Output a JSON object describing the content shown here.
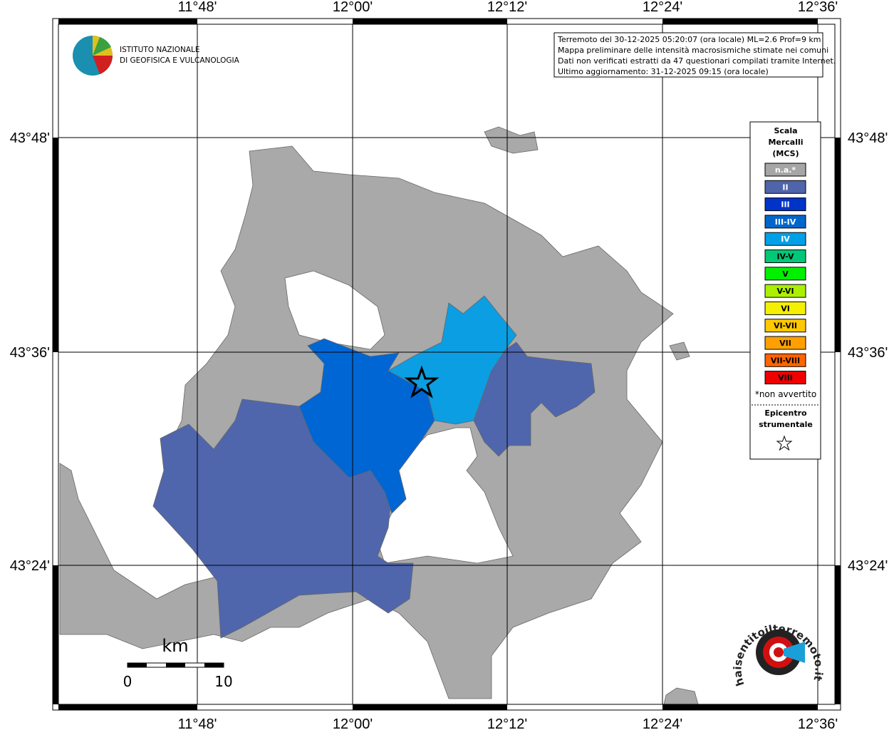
{
  "map": {
    "lon_labels": [
      "11°48'",
      "12°00'",
      "12°12'",
      "12°24'",
      "12°36'"
    ],
    "lat_labels": [
      "43°48'",
      "43°36'",
      "43°24'"
    ],
    "info": [
      "Terremoto del 30-12-2025 05:20:07 (ora locale) ML=2.6 Prof=9 km",
      "Mappa preliminare delle intensità macrosismiche stimate nei comuni",
      "Dati non verificati estratti da 47 questionari compilati tramite Internet.",
      "Ultimo aggiornamento: 31-12-2025 09:15 (ora locale)"
    ],
    "ingv": [
      "ISTITUTO NAZIONALE",
      "DI GEOFISICA E VULCANOLOGIA"
    ],
    "legend": {
      "title": [
        "Scala",
        "Mercalli",
        "(MCS)"
      ],
      "items": [
        {
          "label": "n.a.*",
          "color": "#a6a6a6"
        },
        {
          "label": "II",
          "color": "#5064ac"
        },
        {
          "label": "III",
          "color": "#0033c8"
        },
        {
          "label": "III-IV",
          "color": "#0066cc"
        },
        {
          "label": "IV",
          "color": "#00a0e8"
        },
        {
          "label": "IV-V",
          "color": "#00c878"
        },
        {
          "label": "V",
          "color": "#00f000"
        },
        {
          "label": "V-VI",
          "color": "#aaf000"
        },
        {
          "label": "VI",
          "color": "#f5f000"
        },
        {
          "label": "VI-VII",
          "color": "#ffc800"
        },
        {
          "label": "VII",
          "color": "#ffa000"
        },
        {
          "label": "VII-VIII",
          "color": "#ff6400"
        },
        {
          "label": "VIII",
          "color": "#f00000"
        }
      ],
      "note": "*non avvertito",
      "epicenter": [
        "Epicentro",
        "strumentale"
      ]
    },
    "scale": {
      "unit": "km",
      "labels": [
        0,
        10
      ]
    },
    "logo2": "haisentitoilterremoto.it"
  }
}
